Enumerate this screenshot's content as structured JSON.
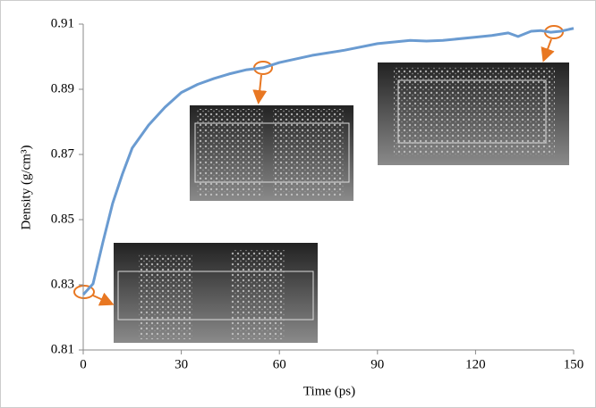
{
  "chart_data": {
    "type": "line",
    "x_label": "Time (ps)",
    "y_label": "Density (g/cm³)",
    "x": [
      0,
      3,
      6,
      9,
      12,
      15,
      20,
      25,
      30,
      35,
      40,
      45,
      50,
      55,
      60,
      70,
      80,
      90,
      100,
      105,
      110,
      120,
      125,
      130,
      133,
      137,
      140,
      143,
      146,
      150
    ],
    "values": [
      0.827,
      0.8303,
      0.843,
      0.855,
      0.864,
      0.872,
      0.879,
      0.8845,
      0.889,
      0.8915,
      0.8933,
      0.8948,
      0.896,
      0.8966,
      0.8982,
      0.9004,
      0.902,
      0.904,
      0.905,
      0.9048,
      0.905,
      0.906,
      0.9065,
      0.9073,
      0.9062,
      0.9078,
      0.908,
      0.9075,
      0.9078,
      0.9087
    ],
    "color": "#6a9bd1",
    "xlim": [
      0,
      150
    ],
    "xticks": [
      0,
      30,
      60,
      90,
      120,
      150
    ],
    "ylim": [
      0.81,
      0.91
    ],
    "yticks": [
      0.81,
      0.83,
      0.85,
      0.87,
      0.89,
      0.91
    ],
    "grid": false
  }
}
